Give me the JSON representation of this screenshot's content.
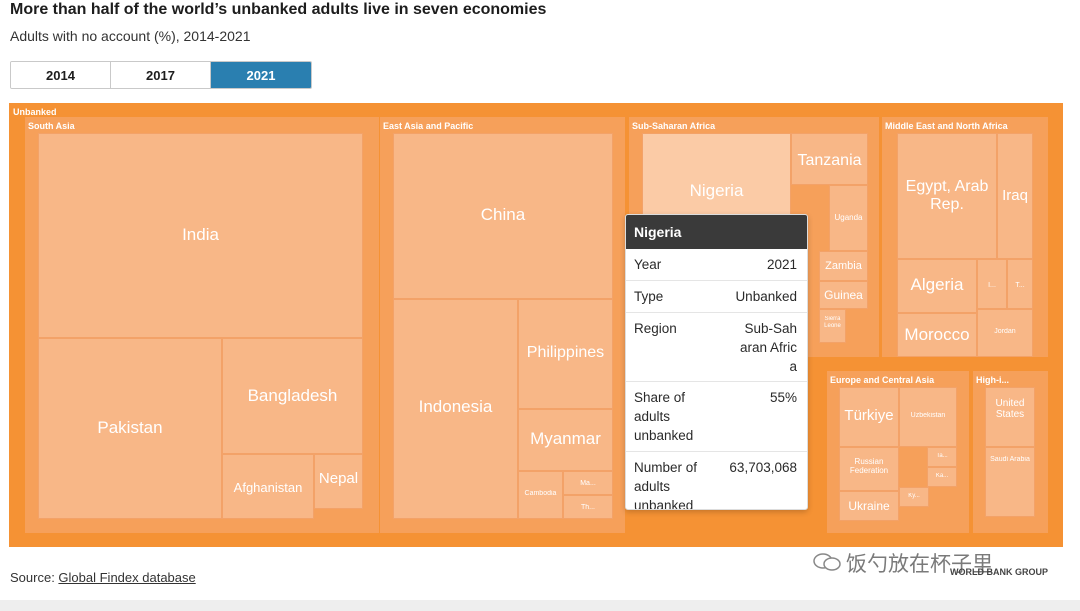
{
  "title": "More than half of the world’s unbanked adults live in seven economies",
  "subtitle": "Adults with no account (%), 2014-2021",
  "tabs": [
    {
      "label": "2014",
      "active": false
    },
    {
      "label": "2017",
      "active": false
    },
    {
      "label": "2021",
      "active": true
    }
  ],
  "chart_data": {
    "type": "treemap",
    "root": "Unbanked",
    "regions": [
      {
        "name": "South Asia",
        "economies": [
          "India",
          "Pakistan",
          "Bangladesh",
          "Afghanistan",
          "Nepal"
        ]
      },
      {
        "name": "East Asia and Pacific",
        "economies": [
          "China",
          "Indonesia",
          "Philippines",
          "Myanmar",
          "Cambodia",
          "Ma...",
          "Th..."
        ]
      },
      {
        "name": "Sub-Saharan Africa",
        "economies": [
          "Nigeria",
          "Tanzania",
          "Uganda",
          "Zambia",
          "Guinea",
          "Sierra Leone"
        ]
      },
      {
        "name": "Middle East and North Africa",
        "economies": [
          "Egypt, Arab Rep.",
          "Iraq",
          "Algeria",
          "Morocco",
          "Jordan",
          "I...",
          "T..."
        ]
      },
      {
        "name": "Europe and Central Asia",
        "economies": [
          "Türkiye",
          "Uzbekistan",
          "Russian Federation",
          "Ukraine",
          "Ta...",
          "Ka...",
          "Ky..."
        ]
      },
      {
        "name": "High-i...",
        "economies": [
          "United States",
          "Saudi Arabia"
        ]
      }
    ],
    "tooltip": {
      "title": "Nigeria",
      "rows": [
        {
          "label": "Year",
          "value": "2021"
        },
        {
          "label": "Type",
          "value": "Unbanked"
        },
        {
          "label": "Region",
          "value": "Sub-Saharan Africa"
        },
        {
          "label": "Share of adults unbanked",
          "value": "55%"
        },
        {
          "label": "Number of adults unbanked",
          "value": "63,703,068"
        }
      ]
    }
  },
  "source": {
    "prefix": "Source: ",
    "link": "Global Findex database"
  },
  "watermark": "饭勺放在杯子里",
  "logo": "WORLD BANK GROUP",
  "colors": {
    "unbanked": "#f59234",
    "region": "#f6a05a",
    "cell": "#f8b787",
    "highlight": "#fbcba6",
    "tab_active": "#2a7fb0",
    "tooltip_header": "#3a3a3a"
  }
}
